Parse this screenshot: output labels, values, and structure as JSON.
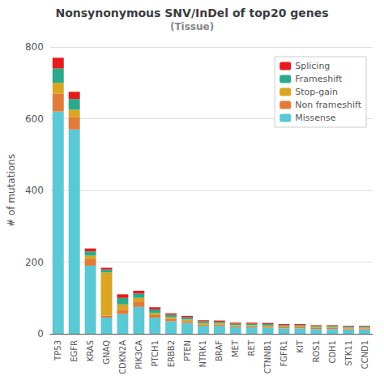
{
  "chart_data": {
    "type": "bar",
    "title": "Nonsynonymous SNV/InDel of top20 genes",
    "subtitle": "(Tissue)",
    "ylabel": "# of mutations",
    "categories": [
      "TP53",
      "EGFR",
      "KRAS",
      "GNAQ",
      "CDKN2A",
      "PIK3CA",
      "PTCH1",
      "ERBB2",
      "PTEN",
      "NTRK1",
      "BRAF",
      "MET",
      "RET",
      "CTNNB1",
      "FGFR1",
      "KIT",
      "ROS1",
      "CDH1",
      "STK11",
      "CCND1"
    ],
    "series": [
      {
        "name": "Missense",
        "color": "#5bc8d5",
        "values": [
          620,
          570,
          190,
          45,
          55,
          75,
          45,
          35,
          30,
          22,
          22,
          18,
          18,
          17,
          15,
          15,
          13,
          13,
          12,
          12
        ]
      },
      {
        "name": "Non frameshift",
        "color": "#e07b39",
        "values": [
          50,
          35,
          18,
          6,
          12,
          15,
          7,
          6,
          5,
          4,
          4,
          3,
          3,
          3,
          3,
          3,
          3,
          3,
          3,
          3
        ]
      },
      {
        "name": "Stop-gain",
        "color": "#daa520",
        "values": [
          30,
          20,
          10,
          120,
          15,
          10,
          6,
          5,
          5,
          4,
          4,
          3,
          3,
          3,
          3,
          3,
          3,
          3,
          2,
          2
        ]
      },
      {
        "name": "Frameshift",
        "color": "#2aaa8a",
        "values": [
          40,
          30,
          12,
          8,
          18,
          12,
          10,
          7,
          6,
          5,
          4,
          4,
          4,
          4,
          3,
          3,
          3,
          3,
          3,
          3
        ]
      },
      {
        "name": "Splicing",
        "color": "#e41a1c",
        "values": [
          30,
          20,
          8,
          5,
          10,
          8,
          6,
          4,
          4,
          3,
          3,
          3,
          3,
          3,
          3,
          3,
          2,
          2,
          2,
          2
        ]
      }
    ],
    "stacked": true,
    "ylim": [
      0,
      800
    ],
    "yticks": [
      0,
      200,
      400,
      600,
      800
    ],
    "grid": true,
    "legend": "upper right"
  }
}
